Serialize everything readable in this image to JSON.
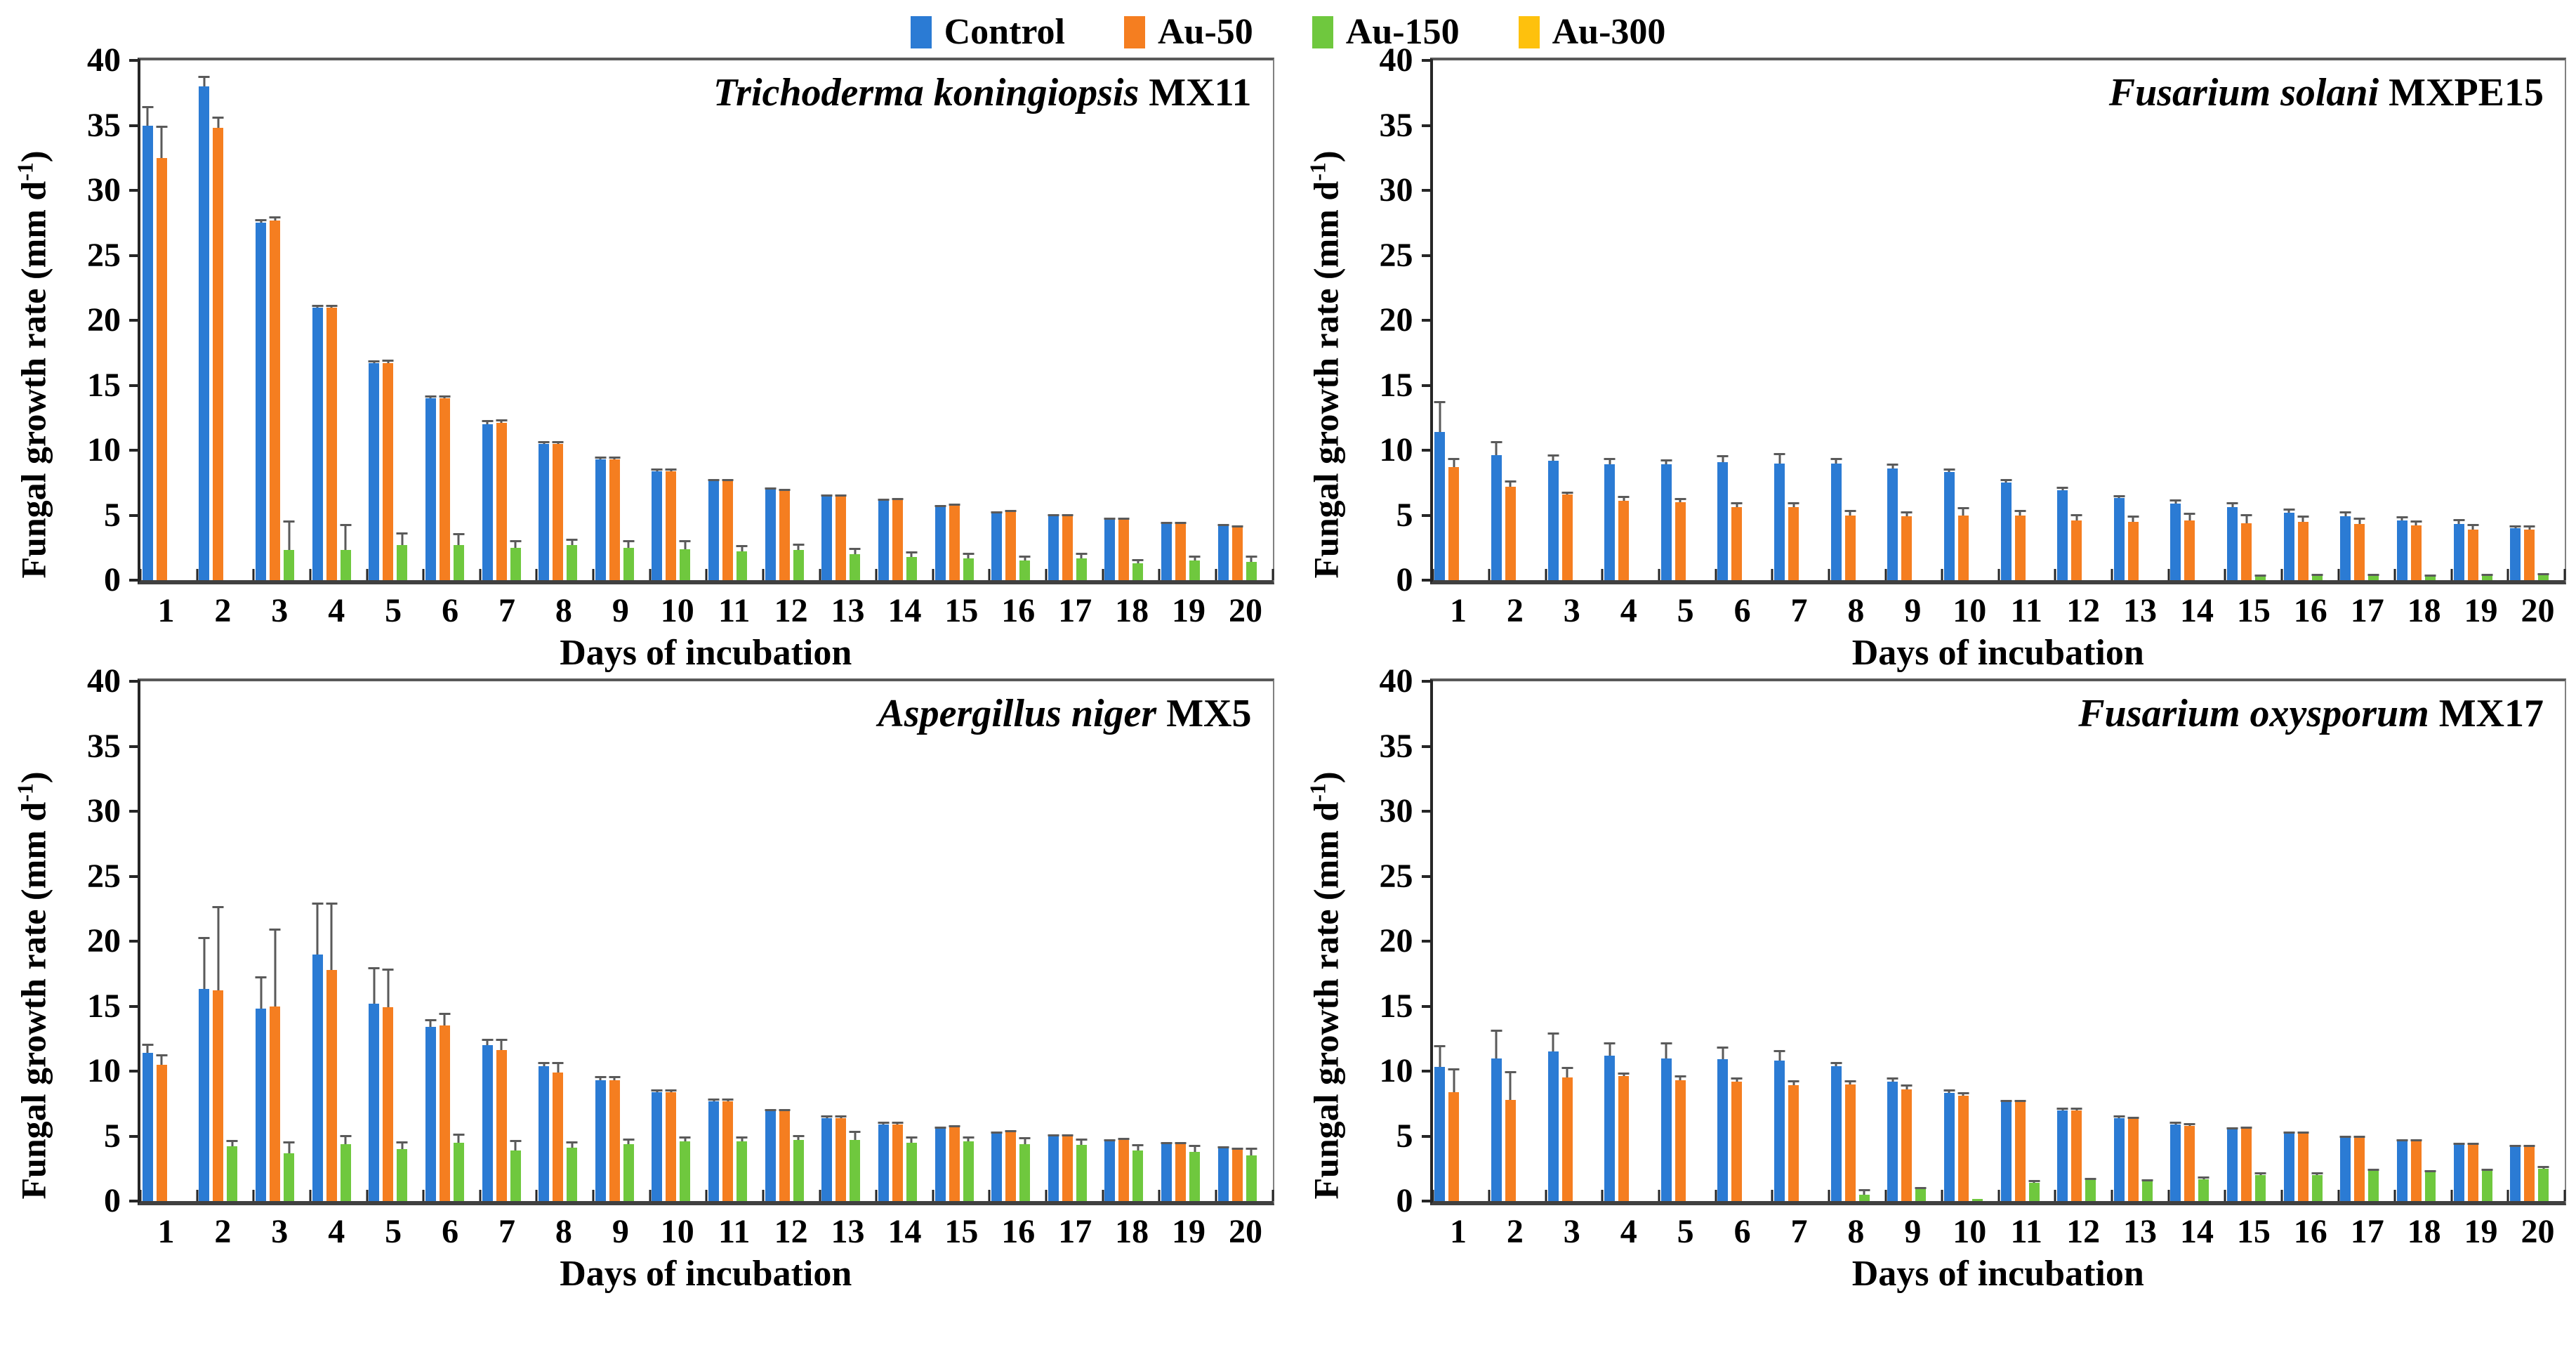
{
  "legend": {
    "items": [
      {
        "label": "Control",
        "color": "#2b7bd4"
      },
      {
        "label": "Au-50",
        "color": "#f57e20"
      },
      {
        "label": "Au-150",
        "color": "#6fc83e"
      },
      {
        "label": "Au-300",
        "color": "#fec10d"
      }
    ]
  },
  "axes": {
    "ylabel_pre": "Fungal growth rate (mm d",
    "ylabel_sup": "-1",
    "ylabel_post": ")",
    "xlabel": "Days of incubation"
  },
  "error_bar_color": "#5a5a5a",
  "chart_data": [
    {
      "type": "bar",
      "title_species": "Trichoderma koningiopsis",
      "title_strain": "MX11",
      "xlabel": "Days of incubation",
      "ylabel": "Fungal growth rate (mm d-1)",
      "ylim": [
        0,
        40
      ],
      "y_ticks": [
        0,
        5,
        10,
        15,
        20,
        25,
        30,
        35,
        40
      ],
      "grid": false,
      "legend_position": "top-center",
      "categories": [
        1,
        2,
        3,
        4,
        5,
        6,
        7,
        8,
        9,
        10,
        11,
        12,
        13,
        14,
        15,
        16,
        17,
        18,
        19,
        20
      ],
      "series": [
        {
          "name": "Control",
          "values": [
            35.0,
            38.0,
            27.5,
            21.0,
            16.7,
            14.0,
            12.0,
            10.5,
            9.3,
            8.4,
            7.6,
            7.0,
            6.5,
            6.1,
            5.7,
            5.2,
            5.0,
            4.7,
            4.4,
            4.2
          ],
          "errors": [
            1.5,
            0.8,
            0.3,
            0.2,
            0.2,
            0.2,
            0.3,
            0.2,
            0.2,
            0.2,
            0.2,
            0.15,
            0.1,
            0.15,
            0.1,
            0.1,
            0.1,
            0.1,
            0.1,
            0.1
          ]
        },
        {
          "name": "Au-50",
          "values": [
            32.5,
            34.8,
            27.7,
            21.0,
            16.7,
            14.0,
            12.1,
            10.5,
            9.3,
            8.4,
            7.6,
            6.9,
            6.5,
            6.2,
            5.8,
            5.3,
            5.0,
            4.7,
            4.4,
            4.1
          ],
          "errors": [
            2.5,
            0.9,
            0.3,
            0.2,
            0.3,
            0.2,
            0.3,
            0.2,
            0.2,
            0.2,
            0.2,
            0.15,
            0.1,
            0.15,
            0.1,
            0.1,
            0.1,
            0.1,
            0.1,
            0.1
          ]
        },
        {
          "name": "Au-150",
          "values": [
            0,
            0,
            2.3,
            2.3,
            2.7,
            2.7,
            2.5,
            2.7,
            2.5,
            2.4,
            2.2,
            2.3,
            2.0,
            1.8,
            1.7,
            1.5,
            1.7,
            1.3,
            1.5,
            1.4
          ],
          "errors": [
            0,
            0,
            2.3,
            2.0,
            1.0,
            0.9,
            0.6,
            0.5,
            0.6,
            0.7,
            0.5,
            0.5,
            0.5,
            0.4,
            0.4,
            0.4,
            0.4,
            0.3,
            0.4,
            0.5
          ]
        },
        {
          "name": "Au-300",
          "values": [
            0,
            0,
            0,
            0,
            0,
            0,
            0,
            0,
            0,
            0,
            0,
            0,
            0,
            0,
            0,
            0,
            0,
            0,
            0,
            0
          ],
          "errors": [
            0,
            0,
            0,
            0,
            0,
            0,
            0,
            0,
            0,
            0,
            0,
            0,
            0,
            0,
            0,
            0,
            0,
            0,
            0,
            0
          ]
        }
      ]
    },
    {
      "type": "bar",
      "title_species": "Fusarium solani",
      "title_strain": "MXPE15",
      "xlabel": "Days of incubation",
      "ylabel": "Fungal growth rate (mm d-1)",
      "ylim": [
        0,
        40
      ],
      "y_ticks": [
        0,
        5,
        10,
        15,
        20,
        25,
        30,
        35,
        40
      ],
      "grid": false,
      "legend_position": "top-center",
      "categories": [
        1,
        2,
        3,
        4,
        5,
        6,
        7,
        8,
        9,
        10,
        11,
        12,
        13,
        14,
        15,
        16,
        17,
        18,
        19,
        20
      ],
      "series": [
        {
          "name": "Control",
          "values": [
            11.4,
            9.6,
            9.2,
            8.9,
            8.9,
            9.1,
            9.0,
            9.0,
            8.6,
            8.3,
            7.5,
            6.9,
            6.3,
            5.9,
            5.6,
            5.2,
            4.9,
            4.6,
            4.3,
            4.0
          ],
          "errors": [
            2.4,
            1.1,
            0.5,
            0.5,
            0.4,
            0.5,
            0.8,
            0.4,
            0.4,
            0.3,
            0.3,
            0.3,
            0.25,
            0.3,
            0.4,
            0.3,
            0.4,
            0.3,
            0.4,
            0.2
          ]
        },
        {
          "name": "Au-50",
          "values": [
            8.7,
            7.2,
            6.6,
            6.1,
            6.0,
            5.6,
            5.6,
            5.0,
            4.9,
            5.0,
            5.0,
            4.6,
            4.5,
            4.6,
            4.4,
            4.5,
            4.3,
            4.2,
            3.9,
            3.9
          ],
          "errors": [
            0.7,
            0.5,
            0.2,
            0.4,
            0.3,
            0.4,
            0.4,
            0.4,
            0.4,
            0.6,
            0.4,
            0.5,
            0.5,
            0.6,
            0.7,
            0.5,
            0.5,
            0.4,
            0.4,
            0.3
          ]
        },
        {
          "name": "Au-150",
          "values": [
            0,
            0,
            0,
            0,
            0,
            0,
            0,
            0,
            0,
            0,
            0,
            0,
            0,
            0,
            0.35,
            0.4,
            0.4,
            0.35,
            0.4,
            0.45
          ],
          "errors": [
            0,
            0,
            0,
            0,
            0,
            0,
            0,
            0,
            0,
            0,
            0,
            0,
            0,
            0,
            0.1,
            0.1,
            0.1,
            0.1,
            0.1,
            0.1
          ]
        },
        {
          "name": "Au-300",
          "values": [
            0,
            0,
            0,
            0,
            0,
            0,
            0,
            0,
            0,
            0,
            0,
            0,
            0,
            0,
            0,
            0,
            0,
            0,
            0,
            0
          ],
          "errors": [
            0,
            0,
            0,
            0,
            0,
            0,
            0,
            0,
            0,
            0,
            0,
            0,
            0,
            0,
            0,
            0,
            0,
            0,
            0,
            0
          ]
        }
      ]
    },
    {
      "type": "bar",
      "title_species": "Aspergillus niger",
      "title_strain": "MX5",
      "xlabel": "Days of incubation",
      "ylabel": "Fungal growth rate (mm d-1)",
      "ylim": [
        0,
        40
      ],
      "y_ticks": [
        0,
        5,
        10,
        15,
        20,
        25,
        30,
        35,
        40
      ],
      "grid": false,
      "legend_position": "top-center",
      "categories": [
        1,
        2,
        3,
        4,
        5,
        6,
        7,
        8,
        9,
        10,
        11,
        12,
        13,
        14,
        15,
        16,
        17,
        18,
        19,
        20
      ],
      "series": [
        {
          "name": "Control",
          "values": [
            11.4,
            16.3,
            14.8,
            19.0,
            15.2,
            13.4,
            12.0,
            10.4,
            9.3,
            8.4,
            7.7,
            6.9,
            6.4,
            5.9,
            5.6,
            5.2,
            5.0,
            4.6,
            4.4,
            4.1
          ],
          "errors": [
            0.7,
            4.0,
            2.5,
            4.0,
            2.8,
            0.6,
            0.5,
            0.3,
            0.3,
            0.2,
            0.2,
            0.2,
            0.2,
            0.2,
            0.15,
            0.15,
            0.15,
            0.15,
            0.15,
            0.1
          ]
        },
        {
          "name": "Au-50",
          "values": [
            10.5,
            16.2,
            15.0,
            17.8,
            14.9,
            13.5,
            11.6,
            9.9,
            9.3,
            8.4,
            7.7,
            6.9,
            6.4,
            5.9,
            5.7,
            5.3,
            5.0,
            4.7,
            4.4,
            4.0
          ],
          "errors": [
            0.8,
            6.5,
            6.0,
            5.2,
            3.0,
            1.0,
            0.9,
            0.8,
            0.3,
            0.2,
            0.2,
            0.2,
            0.2,
            0.2,
            0.15,
            0.15,
            0.15,
            0.15,
            0.15,
            0.1
          ]
        },
        {
          "name": "Au-150",
          "values": [
            0,
            4.2,
            3.7,
            4.4,
            4.0,
            4.5,
            3.9,
            4.1,
            4.4,
            4.6,
            4.6,
            4.7,
            4.7,
            4.5,
            4.6,
            4.4,
            4.3,
            3.9,
            3.8,
            3.5
          ],
          "errors": [
            0,
            0.5,
            0.9,
            0.7,
            0.6,
            0.7,
            0.8,
            0.5,
            0.4,
            0.4,
            0.4,
            0.4,
            0.7,
            0.5,
            0.4,
            0.5,
            0.5,
            0.5,
            0.5,
            0.6
          ]
        },
        {
          "name": "Au-300",
          "values": [
            0,
            0,
            0,
            0,
            0,
            0,
            0,
            0,
            0,
            0,
            0,
            0,
            0,
            0,
            0,
            0,
            0,
            0,
            0,
            0
          ],
          "errors": [
            0,
            0,
            0,
            0,
            0,
            0,
            0,
            0,
            0,
            0,
            0,
            0,
            0,
            0,
            0,
            0,
            0,
            0,
            0,
            0
          ]
        }
      ]
    },
    {
      "type": "bar",
      "title_species": "Fusarium oxysporum",
      "title_strain": "MX17",
      "xlabel": "Days of incubation",
      "ylabel": "Fungal growth rate (mm d-1)",
      "ylim": [
        0,
        40
      ],
      "y_ticks": [
        0,
        5,
        10,
        15,
        20,
        25,
        30,
        35,
        40
      ],
      "grid": false,
      "legend_position": "top-center",
      "categories": [
        1,
        2,
        3,
        4,
        5,
        6,
        7,
        8,
        9,
        10,
        11,
        12,
        13,
        14,
        15,
        16,
        17,
        18,
        19,
        20
      ],
      "series": [
        {
          "name": "Control",
          "values": [
            10.3,
            11.0,
            11.5,
            11.2,
            11.0,
            10.9,
            10.8,
            10.4,
            9.2,
            8.3,
            7.6,
            7.0,
            6.4,
            5.9,
            5.5,
            5.2,
            4.9,
            4.6,
            4.4,
            4.2
          ],
          "errors": [
            1.7,
            2.2,
            1.5,
            1.0,
            1.2,
            1.0,
            0.8,
            0.3,
            0.3,
            0.3,
            0.2,
            0.2,
            0.2,
            0.2,
            0.15,
            0.15,
            0.15,
            0.15,
            0.1,
            0.1
          ]
        },
        {
          "name": "Au-50",
          "values": [
            8.4,
            7.8,
            9.5,
            9.6,
            9.3,
            9.2,
            8.9,
            9.0,
            8.6,
            8.1,
            7.6,
            7.0,
            6.3,
            5.8,
            5.6,
            5.2,
            4.9,
            4.6,
            4.4,
            4.2
          ],
          "errors": [
            1.8,
            2.2,
            0.8,
            0.3,
            0.4,
            0.3,
            0.4,
            0.3,
            0.4,
            0.3,
            0.2,
            0.2,
            0.2,
            0.2,
            0.15,
            0.15,
            0.15,
            0.15,
            0.1,
            0.1
          ]
        },
        {
          "name": "Au-150",
          "values": [
            0,
            0,
            0,
            0,
            0,
            0,
            0,
            0.5,
            0.9,
            0.15,
            1.4,
            1.6,
            1.5,
            1.7,
            2.0,
            2.0,
            2.3,
            2.2,
            2.3,
            2.5
          ],
          "errors": [
            0,
            0,
            0,
            0,
            0,
            0,
            0,
            0.4,
            0.2,
            0,
            0.2,
            0.2,
            0.2,
            0.2,
            0.2,
            0.2,
            0.2,
            0.2,
            0.2,
            0.2
          ]
        },
        {
          "name": "Au-300",
          "values": [
            0,
            0,
            0,
            0,
            0,
            0,
            0,
            0,
            0,
            0,
            0,
            0,
            0,
            0,
            0,
            0,
            0,
            0,
            0,
            0
          ],
          "errors": [
            0,
            0,
            0,
            0,
            0,
            0,
            0,
            0,
            0,
            0,
            0,
            0,
            0,
            0,
            0,
            0,
            0,
            0,
            0,
            0
          ]
        }
      ]
    }
  ]
}
